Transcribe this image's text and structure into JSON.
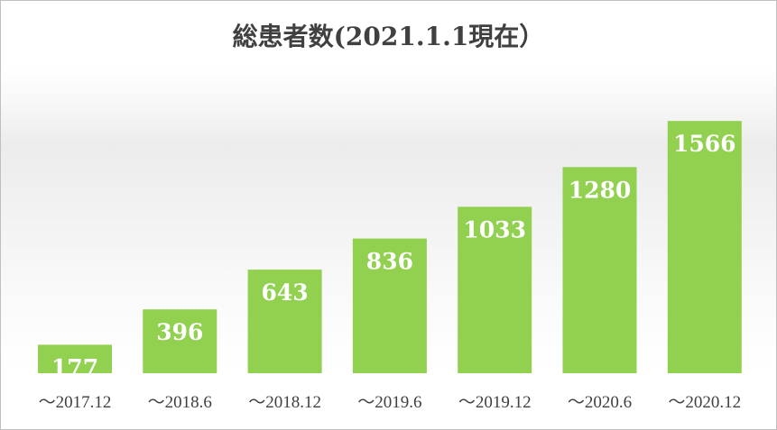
{
  "chart_data": {
    "type": "bar",
    "title": "総患者数(2021.1.1現在）",
    "categories": [
      "～2017.12",
      "～2018.6",
      "～2018.12",
      "～2019.6",
      "～2019.12",
      "～2020.6",
      "～2020.12"
    ],
    "values": [
      177,
      396,
      643,
      836,
      1033,
      1280,
      1566
    ],
    "xlabel": "",
    "ylabel": "",
    "ylim": [
      0,
      1800
    ],
    "grid": false,
    "legend": "none",
    "bar_color": "#92d050",
    "data_label_color": "#ffffff"
  }
}
